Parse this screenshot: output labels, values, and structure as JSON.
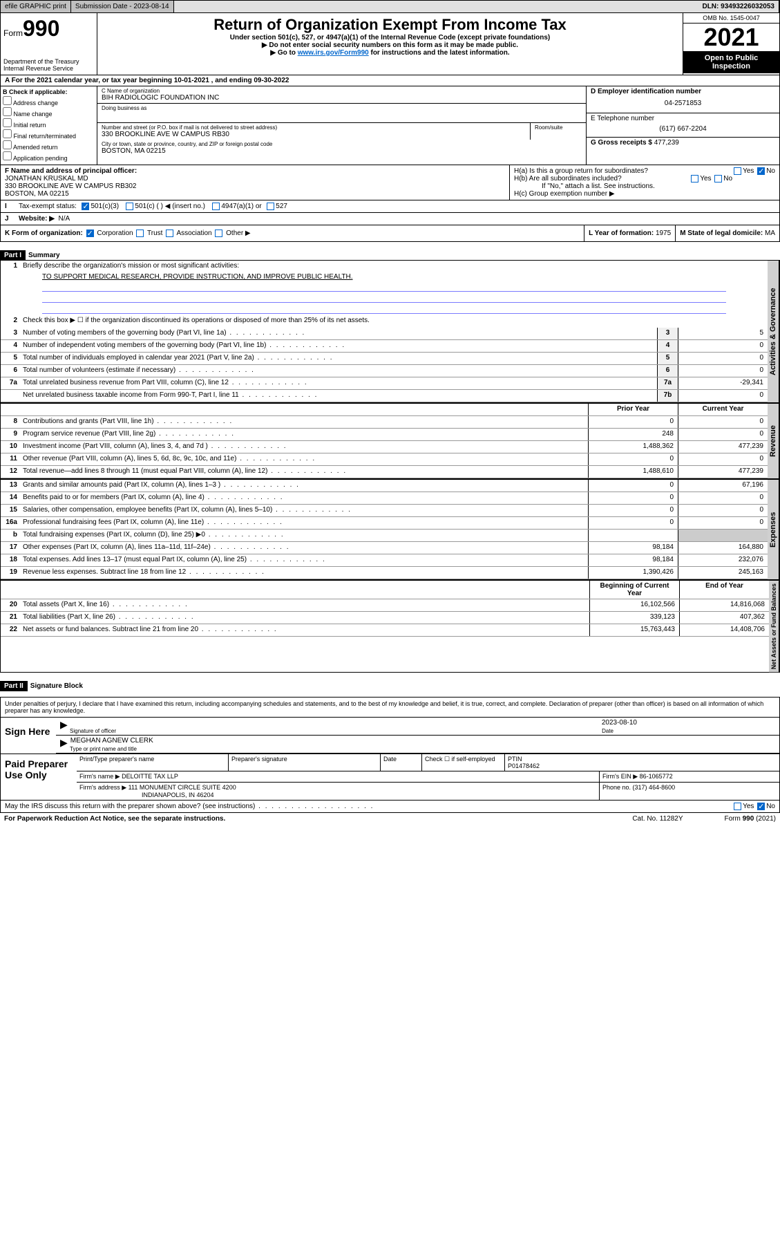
{
  "topbar": {
    "efile": "efile GRAPHIC print",
    "submission": "Submission Date - 2023-08-14",
    "dln": "DLN: 93493226032053"
  },
  "header": {
    "form_prefix": "Form",
    "form_num": "990",
    "title": "Return of Organization Exempt From Income Tax",
    "sub1": "Under section 501(c), 527, or 4947(a)(1) of the Internal Revenue Code (except private foundations)",
    "sub2": "▶ Do not enter social security numbers on this form as it may be made public.",
    "sub3_pre": "▶ Go to ",
    "sub3_link": "www.irs.gov/Form990",
    "sub3_post": " for instructions and the latest information.",
    "dept": "Department of the Treasury",
    "irs": "Internal Revenue Service",
    "omb": "OMB No. 1545-0047",
    "year": "2021",
    "inspection": "Open to Public Inspection"
  },
  "period": {
    "prefix": "A For the 2021 calendar year, or tax year beginning ",
    "begin": "10-01-2021",
    "mid": " , and ending ",
    "end": "09-30-2022"
  },
  "section_b": {
    "title": "B Check if applicable:",
    "opts": [
      "Address change",
      "Name change",
      "Initial return",
      "Final return/terminated",
      "Amended return",
      "Application pending"
    ]
  },
  "section_c": {
    "name_lbl": "C Name of organization",
    "name": "BIH RADIOLOGIC FOUNDATION INC",
    "dba_lbl": "Doing business as",
    "addr_lbl": "Number and street (or P.O. box if mail is not delivered to street address)",
    "room_lbl": "Room/suite",
    "addr": "330 BROOKLINE AVE W CAMPUS RB30",
    "city_lbl": "City or town, state or province, country, and ZIP or foreign postal code",
    "city": "BOSTON, MA  02215"
  },
  "section_d": {
    "lbl": "D Employer identification number",
    "val": "04-2571853"
  },
  "section_e": {
    "lbl": "E Telephone number",
    "val": "(617) 667-2204"
  },
  "section_g": {
    "lbl": "G Gross receipts $ ",
    "val": "477,239"
  },
  "section_f": {
    "lbl": "F Name and address of principal officer:",
    "name": "JONATHAN KRUSKAL MD",
    "addr": "330 BROOKLINE AVE W CAMPUS RB302",
    "city": "BOSTON, MA  02215"
  },
  "section_h": {
    "ha": "H(a)  Is this a group return for subordinates?",
    "hb": "H(b)  Are all subordinates included?",
    "hb_note": "If \"No,\" attach a list. See instructions.",
    "hc": "H(c)  Group exemption number ▶",
    "yes": "Yes",
    "no": "No"
  },
  "section_i": {
    "lbl": "Tax-exempt status:",
    "opts": [
      "501(c)(3)",
      "501(c) (   ) ◀ (insert no.)",
      "4947(a)(1) or",
      "527"
    ]
  },
  "section_j": {
    "lbl": "Website: ▶",
    "val": "N/A"
  },
  "section_k": {
    "lbl": "K Form of organization:",
    "opts": [
      "Corporation",
      "Trust",
      "Association",
      "Other ▶"
    ]
  },
  "section_l": {
    "lbl": "L Year of formation: ",
    "val": "1975"
  },
  "section_m": {
    "lbl": "M State of legal domicile: ",
    "val": "MA"
  },
  "part1": {
    "hdr": "Part I",
    "title": "Summary",
    "vtab1": "Activities & Governance",
    "vtab2": "Revenue",
    "vtab3": "Expenses",
    "vtab4": "Net Assets or Fund Balances",
    "l1_lbl": "Briefly describe the organization's mission or most significant activities:",
    "l1_text": "TO SUPPORT MEDICAL RESEARCH, PROVIDE INSTRUCTION, AND IMPROVE PUBLIC HEALTH.",
    "l2": "Check this box ▶ ☐  if the organization discontinued its operations or disposed of more than 25% of its net assets.",
    "lines_gov": [
      {
        "n": "3",
        "d": "Number of voting members of the governing body (Part VI, line 1a)",
        "b": "3",
        "v": "5"
      },
      {
        "n": "4",
        "d": "Number of independent voting members of the governing body (Part VI, line 1b)",
        "b": "4",
        "v": "0"
      },
      {
        "n": "5",
        "d": "Total number of individuals employed in calendar year 2021 (Part V, line 2a)",
        "b": "5",
        "v": "0"
      },
      {
        "n": "6",
        "d": "Total number of volunteers (estimate if necessary)",
        "b": "6",
        "v": "0"
      },
      {
        "n": "7a",
        "d": "Total unrelated business revenue from Part VIII, column (C), line 12",
        "b": "7a",
        "v": "-29,341"
      },
      {
        "n": "",
        "d": "Net unrelated business taxable income from Form 990-T, Part I, line 11",
        "b": "7b",
        "v": "0"
      }
    ],
    "prior_lbl": "Prior Year",
    "current_lbl": "Current Year",
    "lines_rev": [
      {
        "n": "8",
        "d": "Contributions and grants (Part VIII, line 1h)",
        "p": "0",
        "c": "0"
      },
      {
        "n": "9",
        "d": "Program service revenue (Part VIII, line 2g)",
        "p": "248",
        "c": "0"
      },
      {
        "n": "10",
        "d": "Investment income (Part VIII, column (A), lines 3, 4, and 7d )",
        "p": "1,488,362",
        "c": "477,239"
      },
      {
        "n": "11",
        "d": "Other revenue (Part VIII, column (A), lines 5, 6d, 8c, 9c, 10c, and 11e)",
        "p": "0",
        "c": "0"
      },
      {
        "n": "12",
        "d": "Total revenue—add lines 8 through 11 (must equal Part VIII, column (A), line 12)",
        "p": "1,488,610",
        "c": "477,239"
      }
    ],
    "lines_exp": [
      {
        "n": "13",
        "d": "Grants and similar amounts paid (Part IX, column (A), lines 1–3 )",
        "p": "0",
        "c": "67,196"
      },
      {
        "n": "14",
        "d": "Benefits paid to or for members (Part IX, column (A), line 4)",
        "p": "0",
        "c": "0"
      },
      {
        "n": "15",
        "d": "Salaries, other compensation, employee benefits (Part IX, column (A), lines 5–10)",
        "p": "0",
        "c": "0"
      },
      {
        "n": "16a",
        "d": "Professional fundraising fees (Part IX, column (A), line 11e)",
        "p": "0",
        "c": "0"
      },
      {
        "n": "b",
        "d": "Total fundraising expenses (Part IX, column (D), line 25) ▶0",
        "p": "",
        "c": "",
        "shade": true
      },
      {
        "n": "17",
        "d": "Other expenses (Part IX, column (A), lines 11a–11d, 11f–24e)",
        "p": "98,184",
        "c": "164,880"
      },
      {
        "n": "18",
        "d": "Total expenses. Add lines 13–17 (must equal Part IX, column (A), line 25)",
        "p": "98,184",
        "c": "232,076"
      },
      {
        "n": "19",
        "d": "Revenue less expenses. Subtract line 18 from line 12",
        "p": "1,390,426",
        "c": "245,163"
      }
    ],
    "begin_lbl": "Beginning of Current Year",
    "end_lbl": "End of Year",
    "lines_net": [
      {
        "n": "20",
        "d": "Total assets (Part X, line 16)",
        "p": "16,102,566",
        "c": "14,816,068"
      },
      {
        "n": "21",
        "d": "Total liabilities (Part X, line 26)",
        "p": "339,123",
        "c": "407,362"
      },
      {
        "n": "22",
        "d": "Net assets or fund balances. Subtract line 21 from line 20",
        "p": "15,763,443",
        "c": "14,408,706"
      }
    ]
  },
  "part2": {
    "hdr": "Part II",
    "title": "Signature Block",
    "declare": "Under penalties of perjury, I declare that I have examined this return, including accompanying schedules and statements, and to the best of my knowledge and belief, it is true, correct, and complete. Declaration of preparer (other than officer) is based on all information of which preparer has any knowledge.",
    "sign_here": "Sign Here",
    "sig_officer": "Signature of officer",
    "date_lbl": "Date",
    "sig_date": "2023-08-10",
    "officer_name": "MEGHAN AGNEW CLERK",
    "type_name": "Type or print name and title",
    "paid": "Paid Preparer Use Only",
    "prep_name_lbl": "Print/Type preparer's name",
    "prep_sig_lbl": "Preparer's signature",
    "check_self": "Check ☐ if self-employed",
    "ptin_lbl": "PTIN",
    "ptin": "P01478462",
    "firm_name_lbl": "Firm's name   ▶ ",
    "firm_name": "DELOITTE TAX LLP",
    "firm_ein_lbl": "Firm's EIN ▶ ",
    "firm_ein": "86-1065772",
    "firm_addr_lbl": "Firm's address ▶ ",
    "firm_addr": "111 MONUMENT CIRCLE SUITE 4200",
    "firm_city": "INDIANAPOLIS, IN  46204",
    "phone_lbl": "Phone no. ",
    "phone": "(317) 464-8600",
    "discuss": "May the IRS discuss this return with the preparer shown above? (see instructions)"
  },
  "footer": {
    "paperwork": "For Paperwork Reduction Act Notice, see the separate instructions.",
    "cat": "Cat. No. 11282Y",
    "form": "Form 990 (2021)"
  }
}
